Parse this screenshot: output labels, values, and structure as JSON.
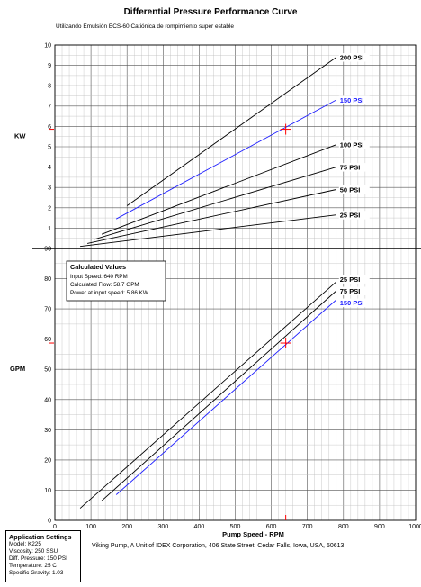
{
  "header": {
    "title": "Differential Pressure Performance Curve",
    "subtitle": "Utilizando Emulsión ECS-60 Catiónica de rompimiento super estable"
  },
  "calc_box": {
    "heading": "Calculated Values",
    "lines": [
      "Input Speed: 640 RPM",
      "Calculated Flow: 58.7 GPM",
      "Power at input speed: 5.86 KW"
    ]
  },
  "app_settings": {
    "heading": "Application Settings",
    "lines": [
      "Model: K225",
      "Viscosity: 250 SSU",
      "Diff. Pressure: 150 PSI",
      "Temperature: 25 C",
      "Specific Gravity: 1.03"
    ]
  },
  "footer": "Viking Pump, A Unit of IDEX Corporation, 406 State Street, Cedar Falls, Iowa, USA, 50613,",
  "colors": {
    "highlight": "#2020ff",
    "marker": "#ff0000",
    "line": "#000000"
  },
  "chart_data": [
    {
      "type": "line",
      "ylabel": "KW",
      "xlim": [
        0,
        1000
      ],
      "ylim": [
        0,
        10
      ],
      "yticks": [
        0,
        1,
        2,
        3,
        4,
        5,
        6,
        7,
        8,
        9,
        10
      ],
      "grid": true,
      "series": [
        {
          "name": "200 PSI",
          "color": "#000000",
          "x": [
            200,
            780
          ],
          "y": [
            2.1,
            9.4
          ]
        },
        {
          "name": "150 PSI",
          "color": "#2020ff",
          "x": [
            170,
            780
          ],
          "y": [
            1.45,
            7.3
          ]
        },
        {
          "name": "100 PSI",
          "color": "#000000",
          "x": [
            130,
            780
          ],
          "y": [
            0.7,
            5.1
          ]
        },
        {
          "name": "75 PSI",
          "color": "#000000",
          "x": [
            110,
            780
          ],
          "y": [
            0.45,
            4.0
          ]
        },
        {
          "name": "50 PSI",
          "color": "#000000",
          "x": [
            90,
            780
          ],
          "y": [
            0.25,
            2.9
          ]
        },
        {
          "name": "25 PSI",
          "color": "#000000",
          "x": [
            70,
            780
          ],
          "y": [
            0.1,
            1.65
          ]
        }
      ],
      "marker": {
        "x": 640,
        "y": 5.86
      }
    },
    {
      "type": "line",
      "xlabel": "Pump Speed - RPM",
      "ylabel": "GPM",
      "xlim": [
        0,
        1000
      ],
      "ylim": [
        0,
        90
      ],
      "xticks": [
        0,
        100,
        200,
        300,
        400,
        500,
        600,
        700,
        800,
        900,
        1000
      ],
      "yticks": [
        0,
        10,
        20,
        30,
        40,
        50,
        60,
        70,
        80,
        90
      ],
      "grid": true,
      "series": [
        {
          "name": "25 PSI",
          "color": "#000000",
          "x": [
            70,
            780
          ],
          "y": [
            4,
            79
          ]
        },
        {
          "name": "75 PSI",
          "color": "#000000",
          "x": [
            130,
            780
          ],
          "y": [
            6.5,
            76
          ]
        },
        {
          "name": "150 PSI",
          "color": "#2020ff",
          "x": [
            170,
            780
          ],
          "y": [
            8.5,
            73
          ]
        }
      ],
      "marker": {
        "x": 640,
        "y": 58.7
      }
    }
  ]
}
